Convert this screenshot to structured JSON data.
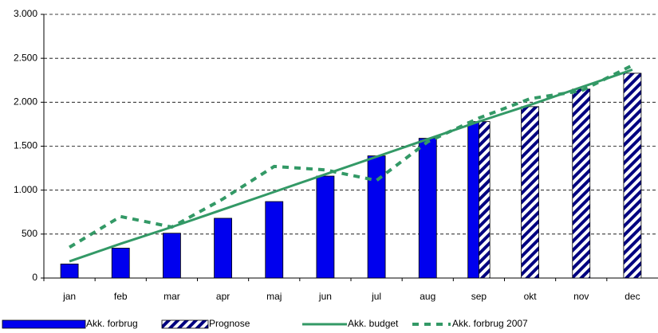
{
  "chart_data": {
    "type": "bar",
    "categories": [
      "jan",
      "feb",
      "mar",
      "apr",
      "maj",
      "jun",
      "jul",
      "aug",
      "sep",
      "okt",
      "nov",
      "dec"
    ],
    "series": [
      {
        "name": "Akk. forbrug",
        "type": "bar",
        "color": "#0000ee",
        "values": [
          160,
          340,
          510,
          680,
          870,
          1160,
          1390,
          1590,
          1780,
          null,
          null,
          null
        ]
      },
      {
        "name": "Prognose",
        "type": "bar",
        "color": "#000080",
        "pattern": "hatch",
        "values": [
          null,
          null,
          null,
          null,
          null,
          null,
          null,
          null,
          1780,
          1950,
          2150,
          2330
        ]
      },
      {
        "name": "Akk. budget",
        "type": "line",
        "color": "#339966",
        "values": [
          190,
          390,
          580,
          780,
          980,
          1180,
          1380,
          1580,
          1780,
          1970,
          2170,
          2370
        ]
      },
      {
        "name": "Akk. forbrug 2007",
        "type": "line",
        "style": "dashed",
        "color": "#339966",
        "values": [
          350,
          700,
          580,
          900,
          1270,
          1230,
          1110,
          1550,
          1820,
          2040,
          2130,
          2420
        ]
      }
    ],
    "ylim": [
      0,
      3000
    ],
    "yticks": [
      0,
      500,
      {
        "value": 1000,
        "label": "1.000"
      },
      {
        "value": 1500,
        "label": "1.500"
      },
      {
        "value": 2000,
        "label": "2.000"
      },
      {
        "value": 2500,
        "label": "2.500"
      },
      {
        "value": 3000,
        "label": "3.000"
      }
    ],
    "grid": true,
    "legend": "bottom"
  }
}
